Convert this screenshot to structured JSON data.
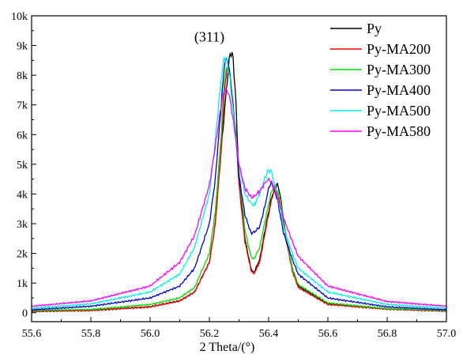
{
  "chart_data": {
    "type": "line",
    "xlabel": "2 Theta/(°)",
    "ylabel": "",
    "xlim": [
      55.6,
      57.0
    ],
    "ylim": [
      -300,
      10000
    ],
    "x_ticks": [
      55.6,
      55.8,
      56.0,
      56.2,
      56.4,
      56.6,
      56.8,
      57.0
    ],
    "x_tick_labels": [
      "55.6",
      "55.8",
      "56.0",
      "56.2",
      "56.4",
      "56.6",
      "56.8",
      "57.0"
    ],
    "y_ticks": [
      0,
      1000,
      2000,
      3000,
      4000,
      5000,
      6000,
      7000,
      8000,
      9000,
      10000
    ],
    "y_tick_labels": [
      "0",
      "1k",
      "2k",
      "3k",
      "4k",
      "5k",
      "6k",
      "7k",
      "8k",
      "9k",
      "10k"
    ],
    "annotation": {
      "text": "(311)",
      "x": 56.2,
      "y": 9300
    },
    "legend_position": "top-right",
    "grid": false,
    "series": [
      {
        "name": "Py",
        "color": "#000000",
        "points": [
          [
            55.6,
            50
          ],
          [
            55.8,
            80
          ],
          [
            56.0,
            200
          ],
          [
            56.1,
            400
          ],
          [
            56.15,
            700
          ],
          [
            56.2,
            1700
          ],
          [
            56.22,
            3000
          ],
          [
            56.24,
            5500
          ],
          [
            56.26,
            7800
          ],
          [
            56.27,
            8780
          ],
          [
            56.28,
            8600
          ],
          [
            56.29,
            7000
          ],
          [
            56.3,
            4500
          ],
          [
            56.32,
            2500
          ],
          [
            56.34,
            1500
          ],
          [
            56.35,
            1350
          ],
          [
            56.37,
            1800
          ],
          [
            56.39,
            2900
          ],
          [
            56.41,
            3900
          ],
          [
            56.43,
            4350
          ],
          [
            56.44,
            3900
          ],
          [
            56.46,
            2500
          ],
          [
            56.48,
            1500
          ],
          [
            56.5,
            900
          ],
          [
            56.6,
            300
          ],
          [
            56.8,
            130
          ],
          [
            57.0,
            60
          ]
        ]
      },
      {
        "name": "Py-MA200",
        "color": "#ff0000",
        "points": [
          [
            55.6,
            50
          ],
          [
            55.8,
            80
          ],
          [
            56.0,
            200
          ],
          [
            56.1,
            400
          ],
          [
            56.15,
            700
          ],
          [
            56.2,
            1700
          ],
          [
            56.22,
            3000
          ],
          [
            56.24,
            5500
          ],
          [
            56.25,
            7300
          ],
          [
            56.26,
            8300
          ],
          [
            56.27,
            8000
          ],
          [
            56.29,
            6000
          ],
          [
            56.3,
            4300
          ],
          [
            56.32,
            2400
          ],
          [
            56.34,
            1450
          ],
          [
            56.35,
            1300
          ],
          [
            56.37,
            1700
          ],
          [
            56.39,
            2800
          ],
          [
            56.41,
            3800
          ],
          [
            56.42,
            4200
          ],
          [
            56.44,
            3700
          ],
          [
            56.46,
            2400
          ],
          [
            56.48,
            1400
          ],
          [
            56.5,
            850
          ],
          [
            56.6,
            280
          ],
          [
            56.8,
            120
          ],
          [
            57.0,
            60
          ]
        ]
      },
      {
        "name": "Py-MA300",
        "color": "#00dd00",
        "points": [
          [
            55.6,
            80
          ],
          [
            55.8,
            110
          ],
          [
            56.0,
            280
          ],
          [
            56.1,
            500
          ],
          [
            56.15,
            850
          ],
          [
            56.2,
            2000
          ],
          [
            56.22,
            3400
          ],
          [
            56.24,
            6000
          ],
          [
            56.25,
            7800
          ],
          [
            56.26,
            8300
          ],
          [
            56.27,
            8000
          ],
          [
            56.29,
            6000
          ],
          [
            56.3,
            4700
          ],
          [
            56.32,
            2800
          ],
          [
            56.34,
            1900
          ],
          [
            56.35,
            1800
          ],
          [
            56.37,
            2200
          ],
          [
            56.39,
            3200
          ],
          [
            56.41,
            4100
          ],
          [
            56.42,
            4300
          ],
          [
            56.44,
            3800
          ],
          [
            56.46,
            2500
          ],
          [
            56.48,
            1500
          ],
          [
            56.5,
            950
          ],
          [
            56.6,
            330
          ],
          [
            56.8,
            140
          ],
          [
            57.0,
            80
          ]
        ]
      },
      {
        "name": "Py-MA400",
        "color": "#0000cc",
        "points": [
          [
            55.6,
            100
          ],
          [
            55.8,
            220
          ],
          [
            56.0,
            500
          ],
          [
            56.1,
            900
          ],
          [
            56.15,
            1500
          ],
          [
            56.2,
            3000
          ],
          [
            56.22,
            4500
          ],
          [
            56.24,
            7000
          ],
          [
            56.25,
            8300
          ],
          [
            56.26,
            8600
          ],
          [
            56.27,
            8000
          ],
          [
            56.29,
            5800
          ],
          [
            56.3,
            4600
          ],
          [
            56.32,
            3300
          ],
          [
            56.34,
            2700
          ],
          [
            56.35,
            2700
          ],
          [
            56.37,
            2900
          ],
          [
            56.39,
            3700
          ],
          [
            56.4,
            4200
          ],
          [
            56.41,
            4400
          ],
          [
            56.43,
            3800
          ],
          [
            56.45,
            2700
          ],
          [
            56.48,
            1800
          ],
          [
            56.5,
            1300
          ],
          [
            56.6,
            500
          ],
          [
            56.8,
            200
          ],
          [
            57.0,
            100
          ]
        ]
      },
      {
        "name": "Py-MA500",
        "color": "#00eeee",
        "points": [
          [
            55.6,
            150
          ],
          [
            55.8,
            300
          ],
          [
            56.0,
            700
          ],
          [
            56.1,
            1300
          ],
          [
            56.15,
            2200
          ],
          [
            56.2,
            4000
          ],
          [
            56.22,
            5800
          ],
          [
            56.24,
            7900
          ],
          [
            56.25,
            8600
          ],
          [
            56.26,
            8500
          ],
          [
            56.27,
            7800
          ],
          [
            56.29,
            5800
          ],
          [
            56.3,
            5000
          ],
          [
            56.32,
            4000
          ],
          [
            56.34,
            3700
          ],
          [
            56.35,
            3600
          ],
          [
            56.37,
            4000
          ],
          [
            56.39,
            4600
          ],
          [
            56.4,
            4800
          ],
          [
            56.41,
            4750
          ],
          [
            56.43,
            3900
          ],
          [
            56.45,
            2900
          ],
          [
            56.48,
            2000
          ],
          [
            56.5,
            1500
          ],
          [
            56.6,
            700
          ],
          [
            56.8,
            280
          ],
          [
            57.0,
            150
          ]
        ]
      },
      {
        "name": "Py-MA580",
        "color": "#ff00ff",
        "points": [
          [
            55.6,
            220
          ],
          [
            55.8,
            400
          ],
          [
            56.0,
            900
          ],
          [
            56.1,
            1700
          ],
          [
            56.15,
            2600
          ],
          [
            56.2,
            4300
          ],
          [
            56.22,
            5600
          ],
          [
            56.24,
            7000
          ],
          [
            56.25,
            7500
          ],
          [
            56.26,
            7500
          ],
          [
            56.27,
            7200
          ],
          [
            56.29,
            5800
          ],
          [
            56.3,
            5000
          ],
          [
            56.32,
            4200
          ],
          [
            56.34,
            3900
          ],
          [
            56.35,
            3900
          ],
          [
            56.37,
            4100
          ],
          [
            56.39,
            4400
          ],
          [
            56.4,
            4500
          ],
          [
            56.41,
            4400
          ],
          [
            56.43,
            3900
          ],
          [
            56.45,
            3200
          ],
          [
            56.48,
            2400
          ],
          [
            56.5,
            1900
          ],
          [
            56.6,
            900
          ],
          [
            56.8,
            380
          ],
          [
            57.0,
            220
          ]
        ]
      }
    ]
  }
}
